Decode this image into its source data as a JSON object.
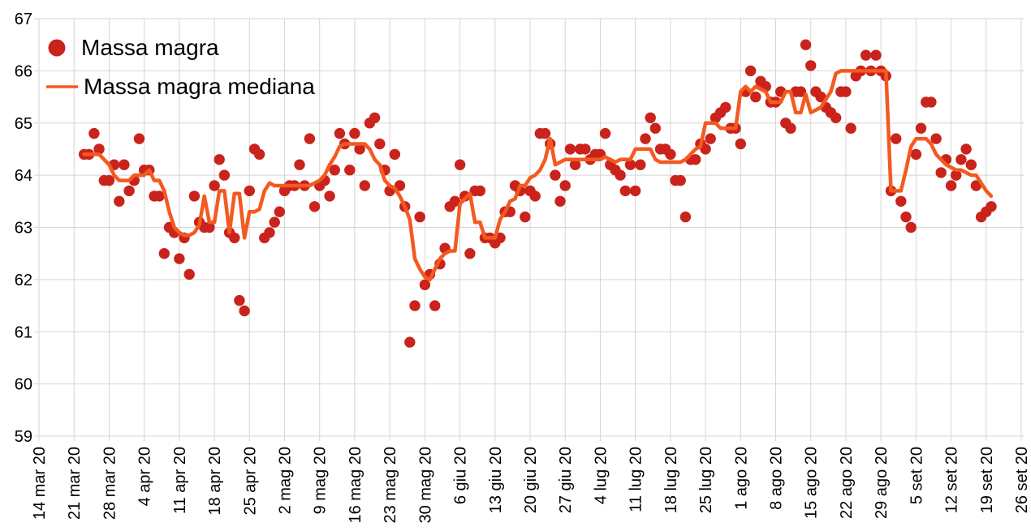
{
  "chart_data": {
    "type": "scatter",
    "title": "",
    "background_color": "#ffffff",
    "grid_color": "#d5d5d5",
    "text_color": "#000000",
    "grid": true,
    "legend_position": "top-left",
    "y_axis": {
      "min": 59,
      "max": 67,
      "ticks": [
        67,
        66,
        65,
        64,
        63,
        62,
        61,
        60,
        59
      ]
    },
    "x_axis": {
      "start_date": "2020-03-14",
      "end_date": "2020-09-26",
      "days_between_ticks": 7,
      "tick_labels": [
        "14 mar 20",
        "21 mar 20",
        "28 mar 20",
        "4 apr 20",
        "11 apr 20",
        "18 apr 20",
        "25 apr 20",
        "2 mag 20",
        "9 mag 20",
        "16 mag 20",
        "23 mag 20",
        "30 mag 20",
        "6 giu 20",
        "13 giu 20",
        "20 giu 20",
        "27 giu 20",
        "4 lug 20",
        "11 lug 20",
        "18 lug 20",
        "25 lug 20",
        "1 ago 20",
        "8 ago 20",
        "15 ago 20",
        "22 ago 20",
        "29 ago 20",
        "5 set 20",
        "12 set 20",
        "19 set 20",
        "26 set 20"
      ]
    },
    "series": [
      {
        "name": "Massa magra",
        "type": "scatter",
        "color": "#c9231c",
        "start_date": "2020-03-23",
        "daily_values": [
          64.4,
          64.4,
          64.8,
          64.5,
          63.9,
          63.9,
          64.2,
          63.5,
          64.2,
          63.7,
          63.9,
          64.7,
          64.1,
          64.1,
          63.6,
          63.6,
          62.5,
          63.0,
          62.9,
          62.4,
          62.8,
          62.1,
          63.6,
          63.1,
          63.0,
          63.0,
          63.8,
          64.3,
          64.0,
          62.9,
          62.8,
          61.6,
          61.4,
          63.7,
          64.5,
          64.4,
          62.8,
          62.9,
          63.1,
          63.3,
          63.7,
          63.8,
          63.8,
          64.2,
          63.8,
          64.7,
          63.4,
          63.8,
          63.9,
          63.6,
          64.1,
          64.8,
          64.6,
          64.1,
          64.8,
          64.5,
          63.8,
          65.0,
          65.1,
          64.6,
          64.1,
          63.7,
          64.4,
          63.8,
          63.4,
          60.8,
          61.5,
          63.2,
          61.9,
          62.1,
          61.5,
          62.3,
          62.6,
          63.4,
          63.5,
          64.2,
          63.6,
          62.5,
          63.7,
          63.7,
          62.8,
          62.8,
          62.7,
          62.8,
          63.3,
          63.3,
          63.8,
          63.7,
          63.2,
          63.7,
          63.6,
          64.8,
          64.8,
          64.6,
          64.0,
          63.5,
          63.8,
          64.5,
          64.2,
          64.5,
          64.5,
          64.3,
          64.4,
          64.4,
          64.8,
          64.2,
          64.1,
          64.0,
          63.7,
          64.2,
          63.7,
          64.2,
          64.7,
          65.1,
          64.9,
          64.5,
          64.5,
          64.4,
          63.9,
          63.9,
          63.2,
          64.3,
          64.3,
          64.6,
          64.5,
          64.7,
          65.1,
          65.2,
          65.3,
          64.9,
          64.9,
          64.6,
          65.6,
          66.0,
          65.5,
          65.8,
          65.7,
          65.4,
          65.4,
          65.6,
          65.0,
          64.9,
          65.6,
          65.6,
          66.5,
          66.1,
          65.6,
          65.5,
          65.3,
          65.2,
          65.1,
          65.6,
          65.6,
          64.9,
          65.9,
          66.0,
          66.3,
          66.0,
          66.3,
          66.0,
          65.9,
          63.7,
          64.7,
          63.5,
          63.2,
          63.0,
          64.4,
          64.9,
          65.4,
          65.4,
          64.7,
          64.05,
          64.3,
          63.8,
          64.0,
          64.3,
          64.5,
          64.2,
          63.8,
          63.2,
          63.3,
          63.4
        ]
      },
      {
        "name": "Massa magra mediana",
        "type": "line",
        "color": "#f4591f",
        "start_date": "2020-03-23",
        "daily_values": [
          64.4,
          64.4,
          64.4,
          64.4,
          64.3,
          64.2,
          64.0,
          63.9,
          63.9,
          63.9,
          64.0,
          64.0,
          64.0,
          64.1,
          63.9,
          63.9,
          63.7,
          63.3,
          63.0,
          62.9,
          62.85,
          62.85,
          62.9,
          63.05,
          63.6,
          63.1,
          63.1,
          63.7,
          63.7,
          62.9,
          63.65,
          63.65,
          62.8,
          63.3,
          63.3,
          63.35,
          63.7,
          63.85,
          63.8,
          63.8,
          63.8,
          63.8,
          63.8,
          63.8,
          63.8,
          63.8,
          63.85,
          63.9,
          64.0,
          64.2,
          64.35,
          64.55,
          64.6,
          64.6,
          64.6,
          64.6,
          64.6,
          64.5,
          64.3,
          64.2,
          63.9,
          63.8,
          63.75,
          63.6,
          63.4,
          63.15,
          62.4,
          62.2,
          62.05,
          62.0,
          62.2,
          62.4,
          62.5,
          62.55,
          62.55,
          63.45,
          63.55,
          63.65,
          63.1,
          63.1,
          62.8,
          62.8,
          62.8,
          63.15,
          63.3,
          63.5,
          63.55,
          63.8,
          63.8,
          63.95,
          64.0,
          64.1,
          64.3,
          64.7,
          64.2,
          64.25,
          64.3,
          64.3,
          64.3,
          64.3,
          64.3,
          64.3,
          64.3,
          64.3,
          64.35,
          64.3,
          64.25,
          64.3,
          64.3,
          64.3,
          64.5,
          64.5,
          64.5,
          64.5,
          64.3,
          64.25,
          64.25,
          64.25,
          64.25,
          64.25,
          64.3,
          64.4,
          64.5,
          64.55,
          65.0,
          65.0,
          65.0,
          64.9,
          64.9,
          64.9,
          64.9,
          65.6,
          65.7,
          65.6,
          65.7,
          65.65,
          65.6,
          65.4,
          65.4,
          65.4,
          65.6,
          65.6,
          65.2,
          65.2,
          65.55,
          65.2,
          65.25,
          65.3,
          65.45,
          65.6,
          65.95,
          66.0,
          66.0,
          66.0,
          66.0,
          66.0,
          66.0,
          66.0,
          66.0,
          66.0,
          66.0,
          63.7,
          63.7,
          63.7,
          64.1,
          64.55,
          64.7,
          64.7,
          64.7,
          64.6,
          64.4,
          64.3,
          64.2,
          64.15,
          64.1,
          64.1,
          64.05,
          64.0,
          64.0,
          63.85,
          63.7,
          63.6
        ]
      }
    ]
  }
}
